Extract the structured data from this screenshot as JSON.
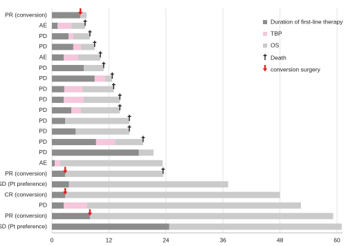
{
  "chart_data": {
    "type": "swimmer",
    "categories": [
      "PR (conversion)",
      "AE",
      "PD",
      "PD",
      "AE",
      "PD",
      "PD",
      "PD",
      "PD",
      "PD",
      "PD",
      "PD",
      "PD",
      "PD",
      "AE",
      "PR (conversion)",
      "SD (Pt preference)",
      "CR (conversion)",
      "PD",
      "PR (conversion)",
      "SD (Pt preference)"
    ],
    "series": [
      {
        "name": "Duration of first-line therapy",
        "color": "#8c8c8c",
        "values": [
          6.0,
          1.2,
          3.5,
          4.5,
          2.5,
          6.7,
          9.0,
          2.6,
          2.5,
          4.1,
          2.8,
          5.0,
          9.3,
          18.3,
          0.6,
          2.8,
          3.6,
          2.8,
          2.5,
          8.0,
          24.7
        ]
      },
      {
        "name": "TBP",
        "color": "#f5c6dc",
        "values": [
          null,
          2.9,
          1.0,
          1.6,
          3.0,
          null,
          2.2,
          3.8,
          4.2,
          2.0,
          null,
          null,
          4.0,
          null,
          1.1,
          null,
          null,
          null,
          4.9,
          null,
          null
        ]
      },
      {
        "name": "OS",
        "color": "#cbcbcb",
        "values": [
          1.3,
          2.9,
          3.5,
          2.9,
          4.7,
          4.2,
          1.5,
          6.6,
          7.6,
          8.2,
          13.5,
          11.3,
          5.9,
          3.1,
          21.6,
          20.6,
          33.5,
          45.2,
          45.0,
          51.2,
          36.3
        ]
      }
    ],
    "markers": [
      {
        "name": "Death",
        "color": "#111111",
        "values": [
          null,
          7.0,
          8.0,
          9.0,
          10.2,
          10.9,
          12.7,
          13.0,
          14.3,
          14.3,
          16.3,
          16.3,
          19.2,
          null,
          null,
          23.4,
          null,
          null,
          null,
          null,
          null
        ]
      },
      {
        "name": "conversion surgery",
        "color": "#e02020",
        "values": [
          6.0,
          null,
          null,
          null,
          null,
          null,
          null,
          null,
          null,
          null,
          null,
          null,
          null,
          null,
          null,
          2.8,
          null,
          2.8,
          null,
          8.0,
          null
        ]
      }
    ],
    "xlim": [
      0,
      60
    ],
    "xticks": [
      0,
      12,
      24,
      36,
      48,
      60
    ],
    "grid": true
  }
}
